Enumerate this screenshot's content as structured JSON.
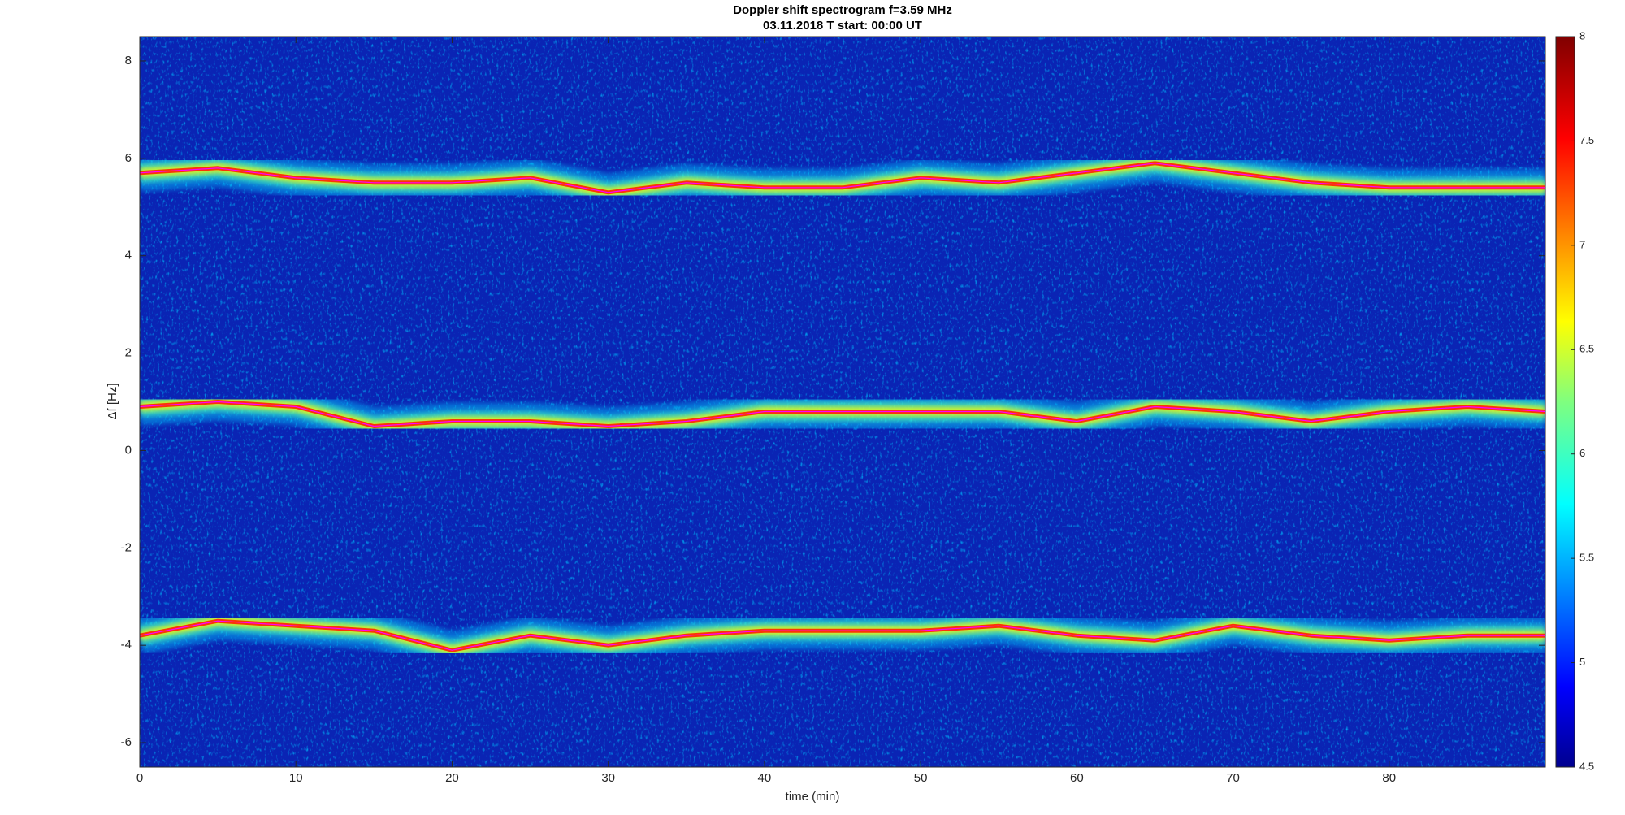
{
  "chart_data": {
    "type": "spectrogram",
    "title": "Doppler shift spectrogram f=3.59 MHz",
    "subtitle": "03.11.2018   T start: 00:00 UT",
    "xlabel": "time (min)",
    "ylabel": "Δf [Hz]",
    "x": [
      0,
      5,
      10,
      15,
      20,
      25,
      30,
      35,
      40,
      45,
      50,
      55,
      60,
      65,
      70,
      75,
      80,
      85,
      90
    ],
    "series": [
      {
        "color": "#ff00ff",
        "values": [
          5.7,
          5.8,
          5.6,
          5.5,
          5.5,
          5.6,
          5.3,
          5.5,
          5.4,
          5.4,
          5.6,
          5.5,
          5.7,
          5.9,
          5.7,
          5.5,
          5.4,
          5.4,
          5.4
        ]
      },
      {
        "color": "#ff00ff",
        "values": [
          0.9,
          1.0,
          0.9,
          0.5,
          0.6,
          0.6,
          0.5,
          0.6,
          0.8,
          0.8,
          0.8,
          0.8,
          0.6,
          0.9,
          0.8,
          0.6,
          0.8,
          0.9,
          0.8
        ]
      },
      {
        "color": "#ff00ff",
        "values": [
          -3.8,
          -3.5,
          -3.6,
          -3.7,
          -4.1,
          -3.8,
          -4.0,
          -3.8,
          -3.7,
          -3.7,
          -3.7,
          -3.6,
          -3.8,
          -3.9,
          -3.6,
          -3.8,
          -3.9,
          -3.8,
          -3.8
        ]
      }
    ],
    "xlim": [
      0,
      90
    ],
    "xticks": [
      0,
      10,
      20,
      30,
      40,
      50,
      60,
      70,
      80
    ],
    "ylim": [
      -6.5,
      8.5
    ],
    "yticks": [
      -6,
      -4,
      -2,
      0,
      2,
      4,
      6,
      8
    ],
    "clim": [
      4.5,
      8
    ],
    "cticks": [
      4.5,
      5,
      5.5,
      6,
      6.5,
      7,
      7.5,
      8
    ]
  }
}
